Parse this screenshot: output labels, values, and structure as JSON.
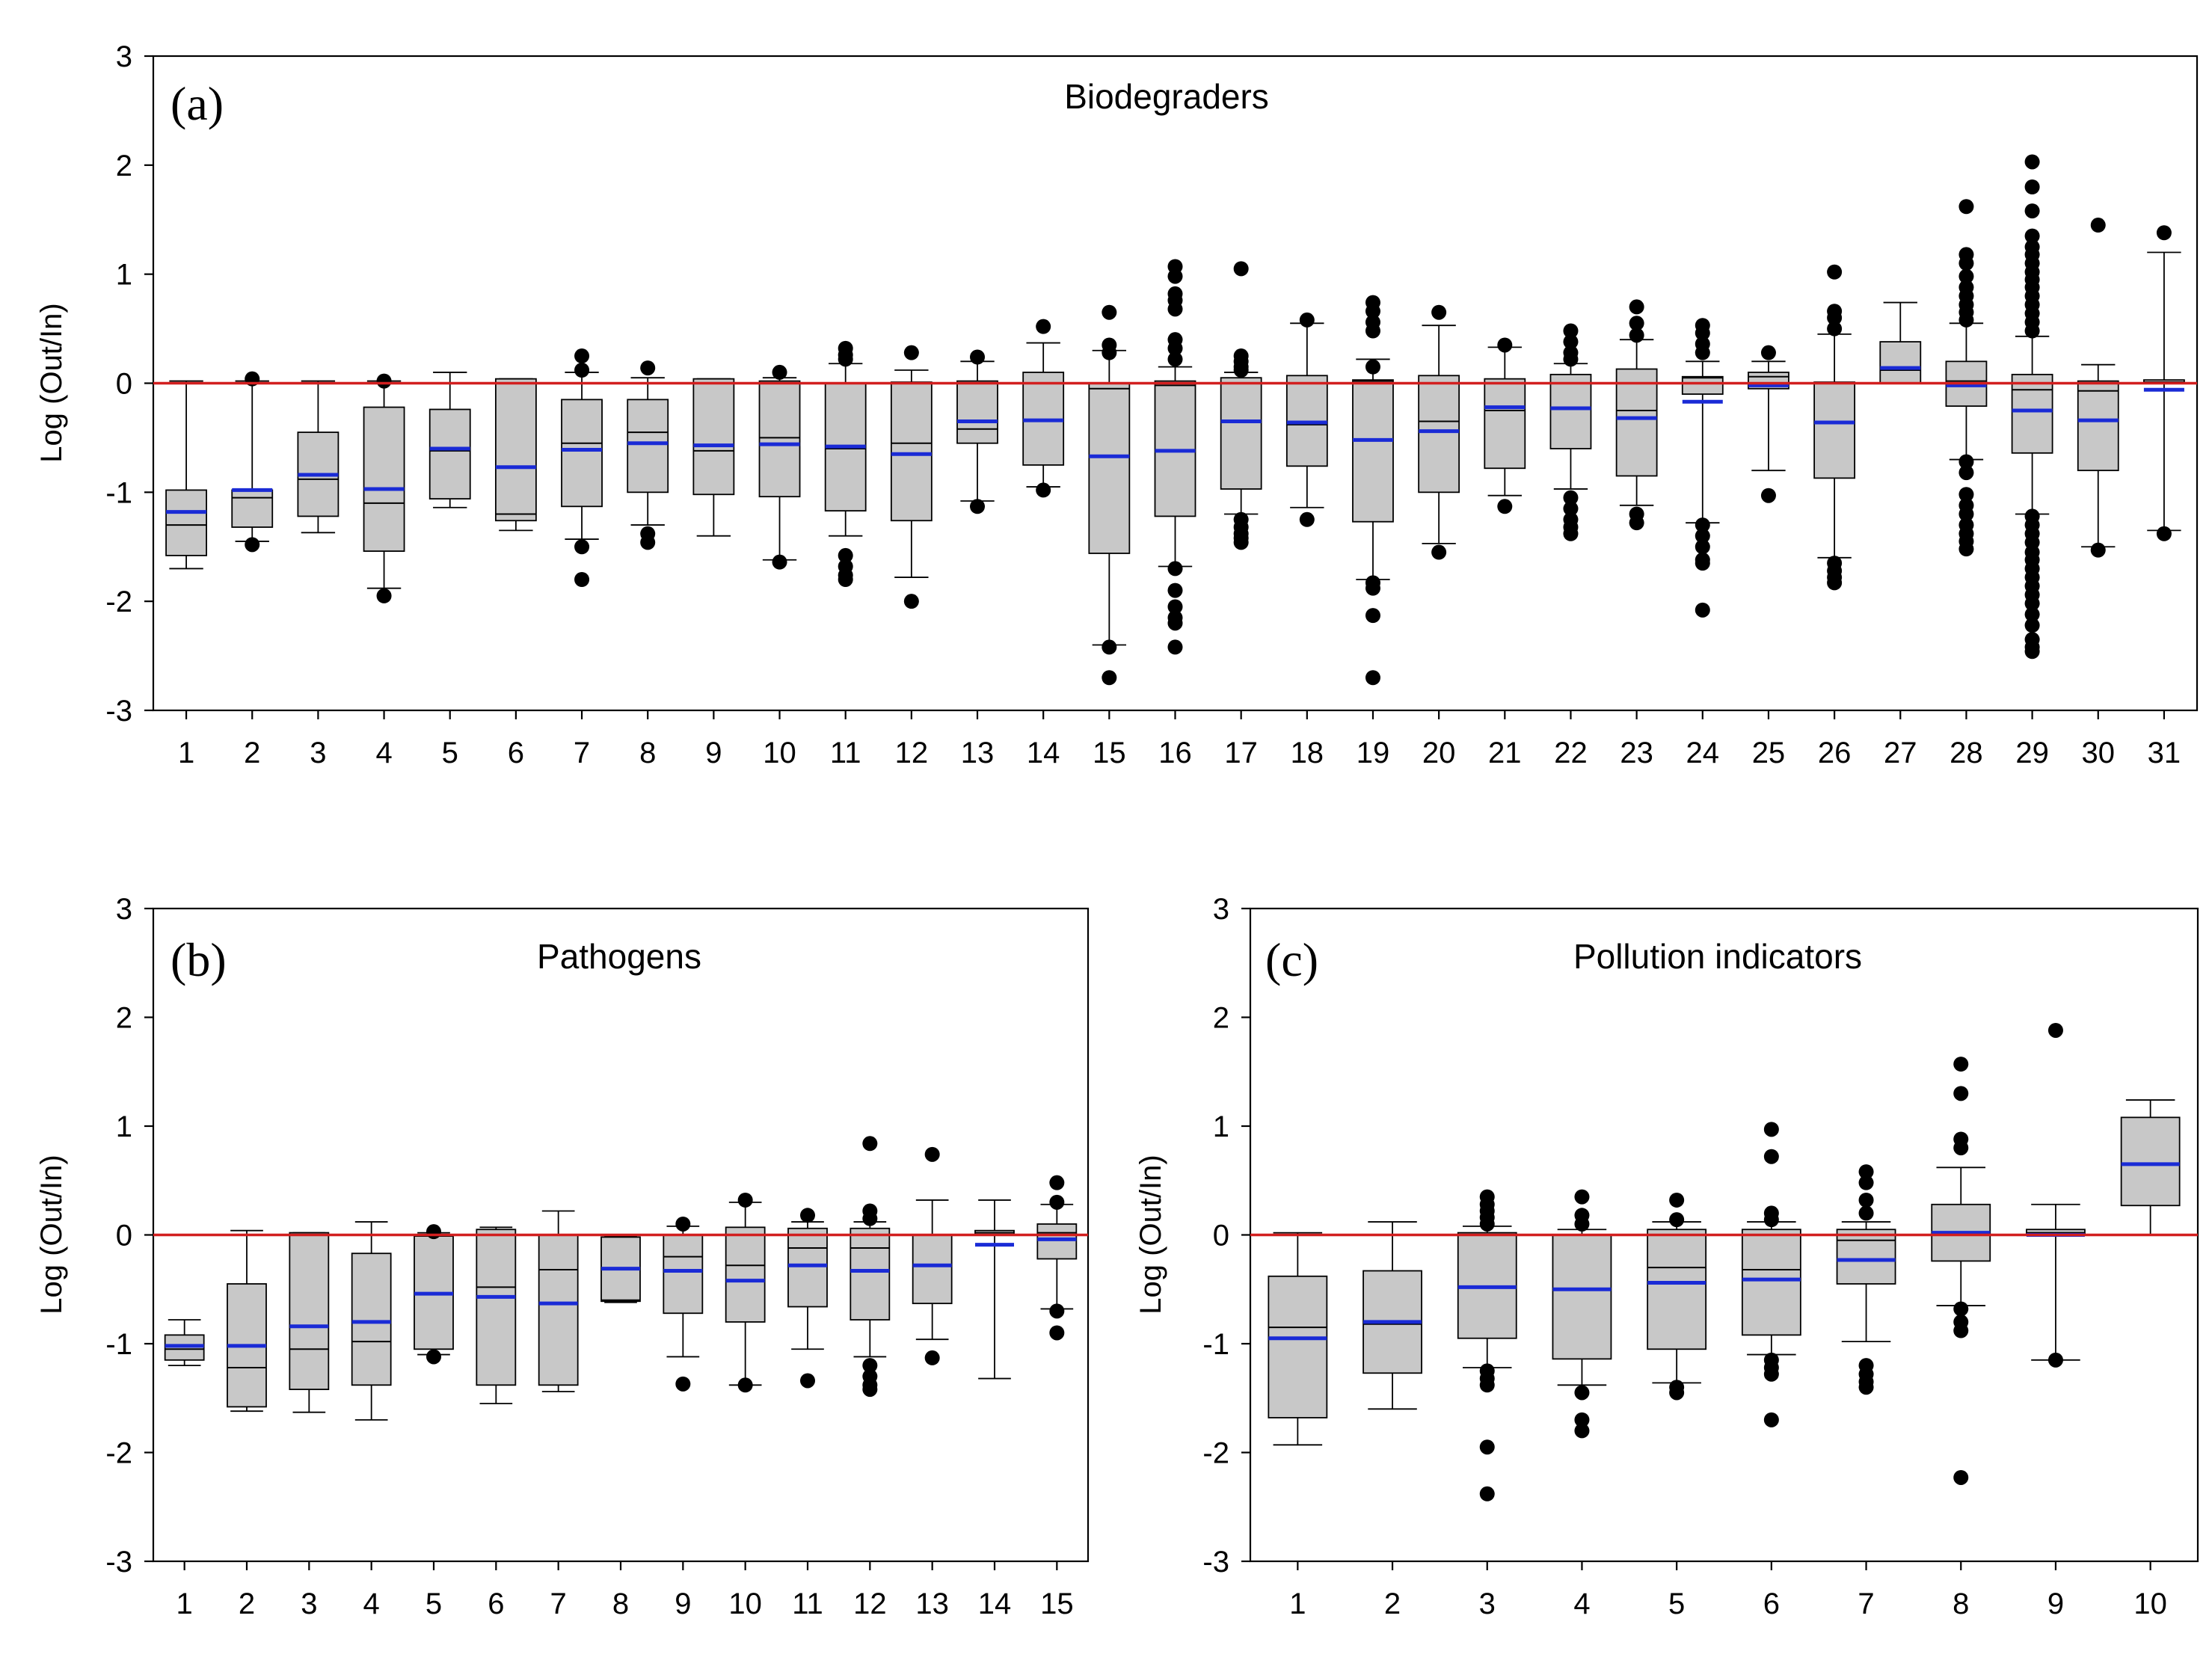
{
  "chart_data": [
    {
      "type": "box",
      "panel_label": "(a)",
      "title": "Biodegraders",
      "ylabel": "Log (Out/In)",
      "ylim": [
        -3,
        3
      ],
      "yticks": [
        "3",
        "2",
        "1",
        "0",
        "-1",
        "-2",
        "-3"
      ],
      "reference_line": 0,
      "categories": [
        "1",
        "2",
        "3",
        "4",
        "5",
        "6",
        "7",
        "8",
        "9",
        "10",
        "11",
        "12",
        "13",
        "14",
        "15",
        "16",
        "17",
        "18",
        "19",
        "20",
        "21",
        "22",
        "23",
        "24",
        "25",
        "26",
        "27",
        "28",
        "29",
        "30",
        "31"
      ],
      "boxes": [
        {
          "min": -1.7,
          "q1": -1.58,
          "median": -1.3,
          "q3": -0.98,
          "max": 0.02,
          "mean": -1.18,
          "outliers": []
        },
        {
          "min": -1.45,
          "q1": -1.32,
          "median": -1.05,
          "q3": -0.98,
          "max": 0.02,
          "mean": -0.98,
          "outliers": [
            0.04,
            -1.48
          ]
        },
        {
          "min": -1.37,
          "q1": -1.22,
          "median": -0.88,
          "q3": -0.45,
          "max": 0.02,
          "mean": -0.84,
          "outliers": []
        },
        {
          "min": -1.88,
          "q1": -1.54,
          "median": -1.1,
          "q3": -0.22,
          "max": 0.02,
          "mean": -0.97,
          "outliers": [
            0.02,
            -1.95
          ]
        },
        {
          "min": -1.14,
          "q1": -1.06,
          "median": -0.62,
          "q3": -0.24,
          "max": 0.1,
          "mean": -0.6,
          "outliers": []
        },
        {
          "min": -1.35,
          "q1": -1.26,
          "median": -1.2,
          "q3": 0.04,
          "max": 0.04,
          "mean": -0.77,
          "outliers": []
        },
        {
          "min": -1.43,
          "q1": -1.13,
          "median": -0.55,
          "q3": -0.15,
          "max": 0.1,
          "mean": -0.61,
          "outliers": [
            0.25,
            0.12,
            -1.5,
            -1.8
          ]
        },
        {
          "min": -1.3,
          "q1": -1.0,
          "median": -0.45,
          "q3": -0.15,
          "max": 0.05,
          "mean": -0.55,
          "outliers": [
            0.14,
            -1.38,
            -1.46
          ]
        },
        {
          "min": -1.4,
          "q1": -1.02,
          "median": -0.62,
          "q3": 0.04,
          "max": 0.04,
          "mean": -0.57,
          "outliers": []
        },
        {
          "min": -1.62,
          "q1": -1.04,
          "median": -0.5,
          "q3": 0.02,
          "max": 0.05,
          "mean": -0.56,
          "outliers": [
            0.1,
            -1.64
          ]
        },
        {
          "min": -1.4,
          "q1": -1.17,
          "median": -0.6,
          "q3": 0.0,
          "max": 0.18,
          "mean": -0.58,
          "outliers": [
            0.32,
            0.26,
            0.22,
            -1.58,
            -1.68,
            -1.76,
            -1.8
          ]
        },
        {
          "min": -1.78,
          "q1": -1.26,
          "median": -0.55,
          "q3": 0.01,
          "max": 0.12,
          "mean": -0.65,
          "outliers": [
            0.28,
            -2.0
          ]
        },
        {
          "min": -1.08,
          "q1": -0.55,
          "median": -0.42,
          "q3": 0.02,
          "max": 0.2,
          "mean": -0.35,
          "outliers": [
            0.24,
            -1.13
          ]
        },
        {
          "min": -0.95,
          "q1": -0.75,
          "median": -0.34,
          "q3": 0.1,
          "max": 0.37,
          "mean": -0.34,
          "outliers": [
            0.52,
            -0.98
          ]
        },
        {
          "min": -2.4,
          "q1": -1.56,
          "median": -0.05,
          "q3": 0.0,
          "max": 0.3,
          "mean": -0.67,
          "outliers": [
            0.65,
            0.35,
            0.28,
            -2.42,
            -2.7
          ]
        },
        {
          "min": -1.68,
          "q1": -1.22,
          "median": -0.02,
          "q3": 0.02,
          "max": 0.15,
          "mean": -0.62,
          "outliers": [
            1.07,
            0.98,
            0.82,
            0.76,
            0.68,
            0.4,
            0.32,
            0.22,
            -1.7,
            -1.9,
            -2.05,
            -2.15,
            -2.2,
            -2.42
          ]
        },
        {
          "min": -1.2,
          "q1": -0.97,
          "median": 0.0,
          "q3": 0.05,
          "max": 0.1,
          "mean": -0.35,
          "outliers": [
            1.05,
            0.25,
            0.2,
            0.15,
            0.12,
            -1.25,
            -1.32,
            -1.38,
            -1.42,
            -1.46
          ]
        },
        {
          "min": -1.14,
          "q1": -0.76,
          "median": -0.38,
          "q3": 0.07,
          "max": 0.55,
          "mean": -0.36,
          "outliers": [
            0.58,
            -1.25
          ]
        },
        {
          "min": -1.8,
          "q1": -1.27,
          "median": 0.02,
          "q3": 0.03,
          "max": 0.22,
          "mean": -0.52,
          "outliers": [
            0.74,
            0.66,
            0.56,
            0.48,
            0.15,
            -1.83,
            -1.88,
            -2.13,
            -2.7
          ]
        },
        {
          "min": -1.47,
          "q1": -1.0,
          "median": -0.35,
          "q3": 0.07,
          "max": 0.53,
          "mean": -0.44,
          "outliers": [
            0.65,
            -1.55
          ]
        },
        {
          "min": -1.03,
          "q1": -0.78,
          "median": -0.25,
          "q3": 0.04,
          "max": 0.33,
          "mean": -0.22,
          "outliers": [
            0.35,
            -1.13
          ]
        },
        {
          "min": -0.97,
          "q1": -0.6,
          "median": -0.22,
          "q3": 0.08,
          "max": 0.18,
          "mean": -0.23,
          "outliers": [
            0.48,
            0.38,
            0.28,
            0.22,
            -1.05,
            -1.15,
            -1.25,
            -1.32,
            -1.38
          ]
        },
        {
          "min": -1.12,
          "q1": -0.85,
          "median": -0.25,
          "q3": 0.13,
          "max": 0.4,
          "mean": -0.32,
          "outliers": [
            0.7,
            0.55,
            0.44,
            -1.2,
            -1.28
          ]
        },
        {
          "min": -1.28,
          "q1": -0.1,
          "median": 0.05,
          "q3": 0.06,
          "max": 0.2,
          "mean": -0.17,
          "outliers": [
            0.53,
            0.46,
            0.36,
            0.28,
            -1.3,
            -1.4,
            -1.5,
            -1.62,
            -1.65,
            -2.08
          ]
        },
        {
          "min": -0.8,
          "q1": -0.05,
          "median": 0.06,
          "q3": 0.1,
          "max": 0.2,
          "mean": -0.02,
          "outliers": [
            0.28,
            -1.03
          ]
        },
        {
          "min": -1.6,
          "q1": -0.87,
          "median": 0.0,
          "q3": 0.01,
          "max": 0.45,
          "mean": -0.36,
          "outliers": [
            1.02,
            0.66,
            0.6,
            0.5,
            -1.65,
            -1.72,
            -1.78,
            -1.83
          ]
        },
        {
          "min": 0.0,
          "q1": 0.0,
          "median": 0.12,
          "q3": 0.38,
          "max": 0.74,
          "mean": 0.14,
          "outliers": []
        },
        {
          "min": -0.7,
          "q1": -0.21,
          "median": 0.02,
          "q3": 0.2,
          "max": 0.55,
          "mean": -0.02,
          "outliers": [
            1.62,
            1.18,
            1.1,
            0.98,
            0.88,
            0.8,
            0.72,
            0.65,
            0.58,
            -0.72,
            -0.82,
            -1.02,
            -1.12,
            -1.2,
            -1.3,
            -1.38,
            -1.45,
            -1.52
          ]
        },
        {
          "min": -1.2,
          "q1": -0.64,
          "median": -0.06,
          "q3": 0.08,
          "max": 0.43,
          "mean": -0.25,
          "outliers": [
            2.03,
            1.8,
            1.58,
            1.35,
            1.25,
            1.18,
            1.1,
            1.02,
            0.95,
            0.88,
            0.8,
            0.72,
            0.64,
            0.56,
            0.48,
            -1.22,
            -1.3,
            -1.38,
            -1.46,
            -1.55,
            -1.62,
            -1.7,
            -1.78,
            -1.86,
            -1.94,
            -2.02,
            -2.12,
            -2.22,
            -2.35,
            -2.42,
            -2.46
          ]
        },
        {
          "min": -1.5,
          "q1": -0.8,
          "median": -0.07,
          "q3": 0.02,
          "max": 0.17,
          "mean": -0.34,
          "outliers": [
            1.45,
            -1.53
          ]
        },
        {
          "min": -1.35,
          "q1": 0.0,
          "median": 0.01,
          "q3": 0.03,
          "max": 1.2,
          "mean": -0.06,
          "outliers": [
            1.38,
            -1.38
          ]
        }
      ]
    },
    {
      "type": "box",
      "panel_label": "(b)",
      "title": "Pathogens",
      "ylabel": "Log (Out/In)",
      "ylim": [
        -3,
        3
      ],
      "yticks": [
        "3",
        "2",
        "1",
        "0",
        "-1",
        "-2",
        "-3"
      ],
      "reference_line": 0,
      "categories": [
        "1",
        "2",
        "3",
        "4",
        "5",
        "6",
        "7",
        "8",
        "9",
        "10",
        "11",
        "12",
        "13",
        "14",
        "15"
      ],
      "boxes": [
        {
          "min": -1.2,
          "q1": -1.15,
          "median": -1.05,
          "q3": -0.92,
          "max": -0.78,
          "mean": -1.02,
          "outliers": []
        },
        {
          "min": -1.62,
          "q1": -1.58,
          "median": -1.22,
          "q3": -0.45,
          "max": 0.04,
          "mean": -1.02,
          "outliers": []
        },
        {
          "min": -1.63,
          "q1": -1.42,
          "median": -1.05,
          "q3": 0.02,
          "max": 0.02,
          "mean": -0.84,
          "outliers": []
        },
        {
          "min": -1.7,
          "q1": -1.38,
          "median": -0.98,
          "q3": -0.17,
          "max": 0.12,
          "mean": -0.8,
          "outliers": []
        },
        {
          "min": -1.1,
          "q1": -1.05,
          "median": -0.01,
          "q3": 0.0,
          "max": 0.02,
          "mean": -0.54,
          "outliers": [
            0.03,
            -1.12
          ]
        },
        {
          "min": -1.55,
          "q1": -1.38,
          "median": -0.48,
          "q3": 0.05,
          "max": 0.07,
          "mean": -0.57,
          "outliers": []
        },
        {
          "min": -1.44,
          "q1": -1.38,
          "median": -0.32,
          "q3": 0.0,
          "max": 0.22,
          "mean": -0.63,
          "outliers": []
        },
        {
          "min": -0.62,
          "q1": -0.61,
          "median": -0.6,
          "q3": -0.02,
          "max": -0.01,
          "mean": -0.31,
          "outliers": []
        },
        {
          "min": -1.12,
          "q1": -0.72,
          "median": -0.2,
          "q3": 0.0,
          "max": 0.08,
          "mean": -0.33,
          "outliers": [
            0.1,
            -1.37
          ]
        },
        {
          "min": -1.38,
          "q1": -0.8,
          "median": -0.28,
          "q3": 0.07,
          "max": 0.3,
          "mean": -0.42,
          "outliers": [
            0.32,
            -1.38
          ]
        },
        {
          "min": -1.05,
          "q1": -0.66,
          "median": -0.12,
          "q3": 0.06,
          "max": 0.12,
          "mean": -0.28,
          "outliers": [
            0.18,
            -1.34
          ]
        },
        {
          "min": -1.12,
          "q1": -0.78,
          "median": -0.12,
          "q3": 0.06,
          "max": 0.12,
          "mean": -0.33,
          "outliers": [
            0.84,
            0.22,
            0.15,
            -1.2,
            -1.3,
            -1.38,
            -1.42
          ]
        },
        {
          "min": -0.96,
          "q1": -0.63,
          "median": -0.28,
          "q3": 0.0,
          "max": 0.32,
          "mean": -0.28,
          "outliers": [
            0.74,
            -1.13
          ]
        },
        {
          "min": -1.32,
          "q1": 0.0,
          "median": 0.02,
          "q3": 0.04,
          "max": 0.32,
          "mean": -0.09,
          "outliers": []
        },
        {
          "min": -0.68,
          "q1": -0.22,
          "median": 0.02,
          "q3": 0.1,
          "max": 0.28,
          "mean": -0.04,
          "outliers": [
            0.48,
            0.3,
            -0.7,
            -0.9
          ]
        }
      ]
    },
    {
      "type": "box",
      "panel_label": "(c)",
      "title": "Pollution indicators",
      "ylabel": "Log (Out/In)",
      "ylim": [
        -3,
        3
      ],
      "yticks": [
        "3",
        "2",
        "1",
        "0",
        "-1",
        "-2",
        "-3"
      ],
      "reference_line": 0,
      "categories": [
        "1",
        "2",
        "3",
        "4",
        "5",
        "6",
        "7",
        "8",
        "9",
        "10"
      ],
      "boxes": [
        {
          "min": -1.93,
          "q1": -1.68,
          "median": -0.85,
          "q3": -0.38,
          "max": 0.02,
          "mean": -0.95,
          "outliers": []
        },
        {
          "min": -1.6,
          "q1": -1.27,
          "median": -0.82,
          "q3": -0.33,
          "max": 0.12,
          "mean": -0.8,
          "outliers": []
        },
        {
          "min": -1.22,
          "q1": -0.95,
          "median": -0.48,
          "q3": 0.02,
          "max": 0.08,
          "mean": -0.48,
          "outliers": [
            0.35,
            0.28,
            0.22,
            0.16,
            0.1,
            -1.25,
            -1.32,
            -1.38,
            -1.95,
            -2.38
          ]
        },
        {
          "min": -1.38,
          "q1": -1.14,
          "median": -0.5,
          "q3": 0.0,
          "max": 0.05,
          "mean": -0.5,
          "outliers": [
            0.35,
            0.18,
            0.1,
            -1.45,
            -1.7,
            -1.8
          ]
        },
        {
          "min": -1.36,
          "q1": -1.05,
          "median": -0.3,
          "q3": 0.05,
          "max": 0.12,
          "mean": -0.44,
          "outliers": [
            0.32,
            0.14,
            -1.4,
            -1.45
          ]
        },
        {
          "min": -1.1,
          "q1": -0.92,
          "median": -0.32,
          "q3": 0.05,
          "max": 0.12,
          "mean": -0.41,
          "outliers": [
            0.97,
            0.72,
            0.2,
            0.14,
            -1.15,
            -1.22,
            -1.28,
            -1.7
          ]
        },
        {
          "min": -0.98,
          "q1": -0.45,
          "median": -0.05,
          "q3": 0.05,
          "max": 0.12,
          "mean": -0.23,
          "outliers": [
            0.58,
            0.48,
            0.32,
            0.2,
            -1.2,
            -1.28,
            -1.35,
            -1.4
          ]
        },
        {
          "min": -0.65,
          "q1": -0.24,
          "median": 0.02,
          "q3": 0.28,
          "max": 0.62,
          "mean": 0.02,
          "outliers": [
            1.57,
            1.3,
            0.88,
            0.8,
            -0.68,
            -0.8,
            -0.88,
            -2.23
          ]
        },
        {
          "min": -1.15,
          "q1": 0.0,
          "median": 0.02,
          "q3": 0.05,
          "max": 0.28,
          "mean": 0.0,
          "outliers": [
            1.88,
            -1.15
          ]
        },
        {
          "min": 0.0,
          "q1": 0.27,
          "median": 0.65,
          "q3": 1.08,
          "max": 1.24,
          "mean": 0.65,
          "outliers": []
        }
      ]
    }
  ]
}
